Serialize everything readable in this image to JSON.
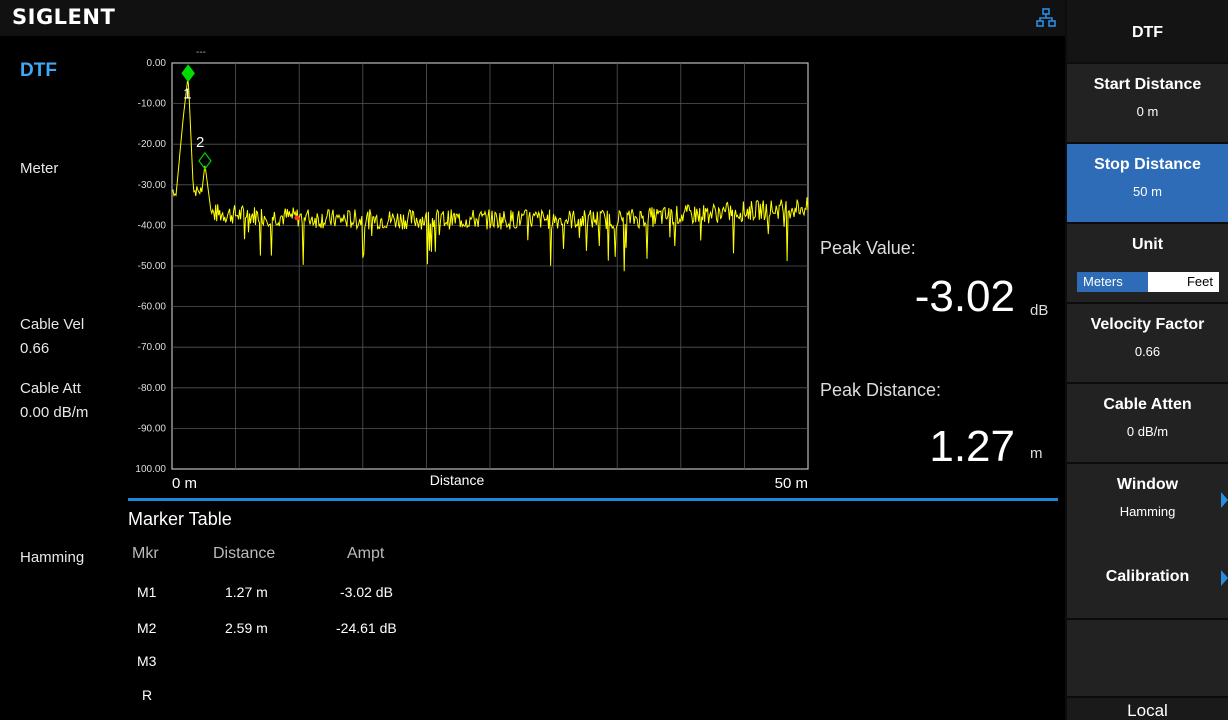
{
  "brand": "SIGLENT",
  "mode_title": "DTF",
  "left_info": {
    "unit_label": "Meter",
    "cable_vel_label": "Cable Vel",
    "cable_vel_value": "0.66",
    "cable_att_label": "Cable Att",
    "cable_att_value": "0.00 dB/m",
    "window_label": "Hamming"
  },
  "plot": {
    "top_label": "---",
    "y_ticks": [
      "0.00",
      "-10.00",
      "-20.00",
      "-30.00",
      "-40.00",
      "-50.00",
      "-60.00",
      "-70.00",
      "-80.00",
      "-90.00",
      "100.00"
    ],
    "x_start": "0 m",
    "x_end": "50 m",
    "x_label": "Distance",
    "trace_color": "#ffff00",
    "markers": [
      {
        "label": "1",
        "distance_m": 1.27,
        "ampt_db": -3.02,
        "color": "#00dd00",
        "style": "filled"
      },
      {
        "label": "2",
        "distance_m": 2.59,
        "ampt_db": -24.61,
        "color": "#00cc00",
        "style": "outline"
      }
    ]
  },
  "peak": {
    "value_label": "Peak Value:",
    "value": "-3.02",
    "value_unit": "dB",
    "distance_label": "Peak Distance:",
    "distance": "1.27",
    "distance_unit": "m"
  },
  "marker_table": {
    "title": "Marker Table",
    "headers": [
      "Mkr",
      "Distance",
      "Ampt"
    ],
    "rows": [
      {
        "mkr": "M1",
        "distance": "1.27 m",
        "ampt": "-3.02 dB"
      },
      {
        "mkr": "M2",
        "distance": "2.59 m",
        "ampt": "-24.61 dB"
      },
      {
        "mkr": "M3",
        "distance": "",
        "ampt": ""
      },
      {
        "mkr": "R",
        "distance": "",
        "ampt": ""
      }
    ]
  },
  "softkeys": {
    "header": "DTF",
    "start_distance": {
      "title": "Start Distance",
      "value": "0 m"
    },
    "stop_distance": {
      "title": "Stop Distance",
      "value": "50 m"
    },
    "unit": {
      "title": "Unit",
      "option_on": "Meters",
      "option_off": "Feet"
    },
    "velocity_factor": {
      "title": "Velocity Factor",
      "value": "0.66"
    },
    "cable_atten": {
      "title": "Cable Atten",
      "value": "0 dB/m"
    },
    "window": {
      "title": "Window",
      "value": "Hamming"
    },
    "calibration": {
      "title": "Calibration"
    },
    "local": "Local"
  },
  "colors": {
    "accent": "#2e6cb8",
    "mode_title": "#3fa9f5",
    "trace": "#ffff00",
    "marker": "#00dd00"
  }
}
